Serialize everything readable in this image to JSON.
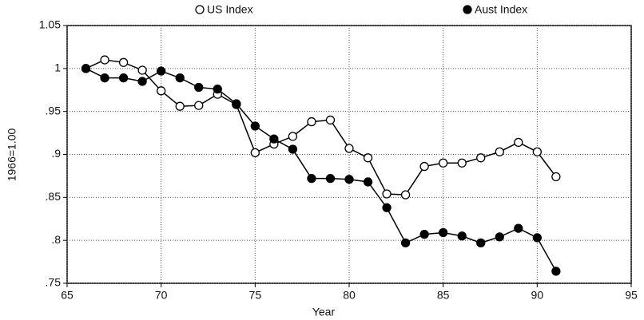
{
  "chart_data": {
    "type": "line",
    "y_label": "1966=1.00",
    "x_label": "Year",
    "x": [
      66,
      67,
      68,
      69,
      70,
      71,
      72,
      73,
      74,
      75,
      76,
      77,
      78,
      79,
      80,
      81,
      82,
      83,
      84,
      85,
      86,
      87,
      88,
      89,
      90,
      91
    ],
    "series": [
      {
        "name": "US Index",
        "color": "#000000",
        "marker_fill": "#ffffff",
        "values": [
          1.0,
          1.01,
          1.007,
          0.998,
          0.974,
          0.956,
          0.957,
          0.97,
          0.958,
          0.902,
          0.912,
          0.921,
          0.938,
          0.94,
          0.907,
          0.896,
          0.854,
          0.853,
          0.886,
          0.89,
          0.89,
          0.896,
          0.903,
          0.914,
          0.903,
          0.874
        ]
      },
      {
        "name": "Aust Index",
        "color": "#000000",
        "marker_fill": "#000000",
        "values": [
          1.0,
          0.989,
          0.989,
          0.985,
          0.997,
          0.989,
          0.978,
          0.976,
          0.959,
          0.933,
          0.918,
          0.906,
          0.872,
          0.872,
          0.871,
          0.868,
          0.838,
          0.797,
          0.807,
          0.809,
          0.805,
          0.797,
          0.804,
          0.814,
          0.803,
          0.764
        ]
      }
    ],
    "xlim": [
      65,
      95
    ],
    "xticks": [
      65,
      70,
      75,
      80,
      85,
      90,
      95
    ],
    "ylim": [
      0.75,
      1.05
    ],
    "yticks": [
      1.05,
      1,
      {
        "value": 0.95,
        "label": ".95"
      },
      {
        "value": 0.9,
        "label": ".9"
      },
      {
        "value": 0.85,
        "label": ".85"
      },
      {
        "value": 0.8,
        "label": ".8"
      },
      {
        "value": 0.75,
        "label": ".75"
      }
    ],
    "grid": true,
    "legend": "top"
  }
}
